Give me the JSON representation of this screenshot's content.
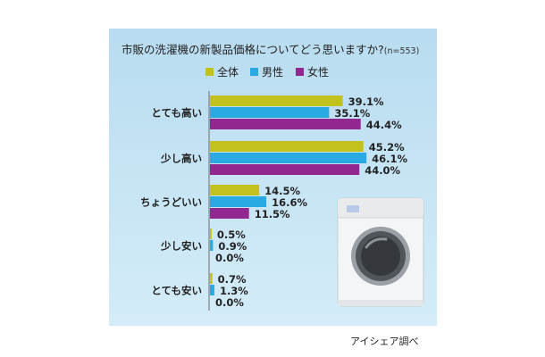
{
  "source": "アイシェア調べ",
  "colors": {
    "all": "#c3c11d",
    "male": "#2aaae2",
    "female": "#92278f"
  },
  "chart_data": {
    "type": "bar",
    "orientation": "horizontal",
    "title": "市販の洗濯機の新製品価格についてどう思いますか?",
    "note": "(n=553)",
    "categories": [
      "とても高い",
      "少し高い",
      "ちょうどいい",
      "少し安い",
      "とても安い"
    ],
    "series": [
      {
        "name": "全体",
        "values": [
          39.1,
          45.2,
          14.5,
          0.5,
          0.7
        ]
      },
      {
        "name": "男性",
        "values": [
          35.1,
          46.1,
          16.6,
          0.9,
          1.3
        ]
      },
      {
        "name": "女性",
        "values": [
          44.4,
          44.0,
          11.5,
          0.0,
          0.0
        ]
      }
    ],
    "unit": "%",
    "xlim": [
      0,
      50
    ],
    "legend_position": "top",
    "grid": false
  }
}
